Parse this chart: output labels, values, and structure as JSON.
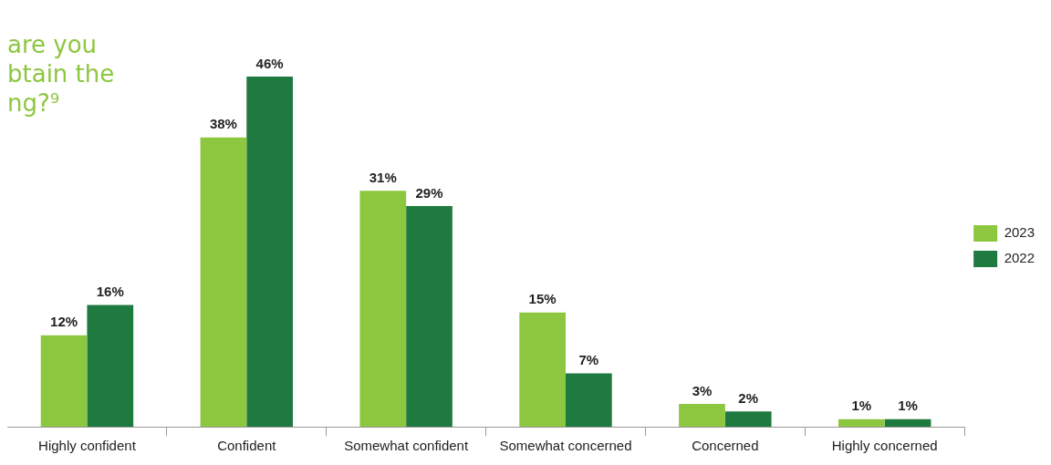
{
  "chart_data": {
    "type": "bar",
    "title": "are you\nbtain the\nng?⁹",
    "categories": [
      "Highly confident",
      "Confident",
      "Somewhat confident",
      "Somewhat concerned",
      "Concerned",
      "Highly concerned"
    ],
    "series": [
      {
        "name": "2023",
        "color": "#8dc63f",
        "values": [
          12,
          38,
          31,
          15,
          3,
          1
        ],
        "value_labels": [
          "12%",
          "38%",
          "31%",
          "15%",
          "3%",
          "1%"
        ]
      },
      {
        "name": "2022",
        "color": "#1f7a3f",
        "values": [
          16,
          46,
          29,
          7,
          2,
          1
        ],
        "value_labels": [
          "16%",
          "46%",
          "29%",
          "7%",
          "2%",
          "1%"
        ]
      }
    ],
    "legend": "right"
  }
}
